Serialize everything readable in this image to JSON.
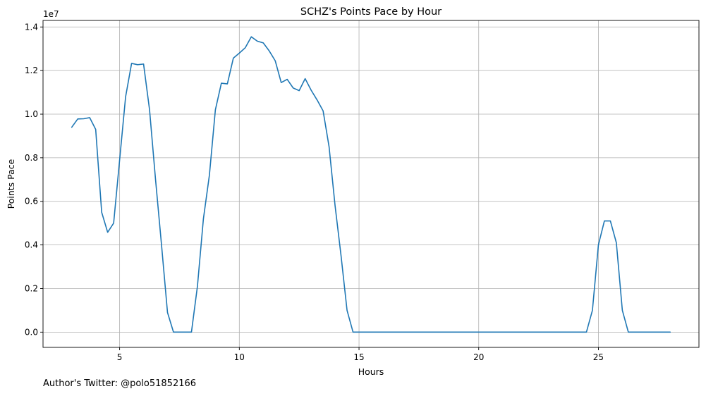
{
  "chart_data": {
    "type": "line",
    "title": "SCHZ's Points Pace by Hour",
    "xlabel": "Hours",
    "ylabel": "Points Pace",
    "y_offset_label": "1e7",
    "xlim": [
      1.8,
      29.2
    ],
    "ylim": [
      -700000,
      14300000
    ],
    "xticks": [
      5,
      10,
      15,
      20,
      25
    ],
    "yticks": [
      0,
      2000000,
      4000000,
      6000000,
      8000000,
      10000000,
      12000000,
      14000000
    ],
    "ytick_labels": [
      "0.0",
      "0.2",
      "0.4",
      "0.6",
      "0.8",
      "1.0",
      "1.2",
      "1.4"
    ],
    "grid": true,
    "series": [
      {
        "color": "#1f77b4",
        "x": [
          3.0,
          3.25,
          3.5,
          3.75,
          4.0,
          4.25,
          4.5,
          4.75,
          5.0,
          5.25,
          5.5,
          5.75,
          6.0,
          6.25,
          6.5,
          6.75,
          7.0,
          7.25,
          7.5,
          7.75,
          8.0,
          8.25,
          8.5,
          8.75,
          9.0,
          9.25,
          9.5,
          9.75,
          10.0,
          10.25,
          10.5,
          10.75,
          11.0,
          11.25,
          11.5,
          11.75,
          12.0,
          12.25,
          12.5,
          12.75,
          13.0,
          13.25,
          13.5,
          13.75,
          14.0,
          14.25,
          14.5,
          14.75,
          15.0,
          24.5,
          24.75,
          25.0,
          25.25,
          25.5,
          25.75,
          26.0,
          26.25,
          26.5,
          28.0
        ],
        "values": [
          9400000,
          9780000,
          9790000,
          9840000,
          9300000,
          5500000,
          4580000,
          5000000,
          7900000,
          10800000,
          12330000,
          12270000,
          12300000,
          10200000,
          7000000,
          4000000,
          900000,
          0,
          0,
          0,
          0,
          2100000,
          5200000,
          7200000,
          10200000,
          11420000,
          11390000,
          12570000,
          12800000,
          13050000,
          13550000,
          13350000,
          13270000,
          12900000,
          12450000,
          11450000,
          11600000,
          11200000,
          11080000,
          11630000,
          11100000,
          10650000,
          10150000,
          8500000,
          5800000,
          3500000,
          1000000,
          0,
          0,
          0,
          1000000,
          4000000,
          5100000,
          5100000,
          4100000,
          1000000,
          0,
          0,
          0
        ]
      }
    ]
  },
  "footnote": "Author's Twitter: @polo51852166"
}
